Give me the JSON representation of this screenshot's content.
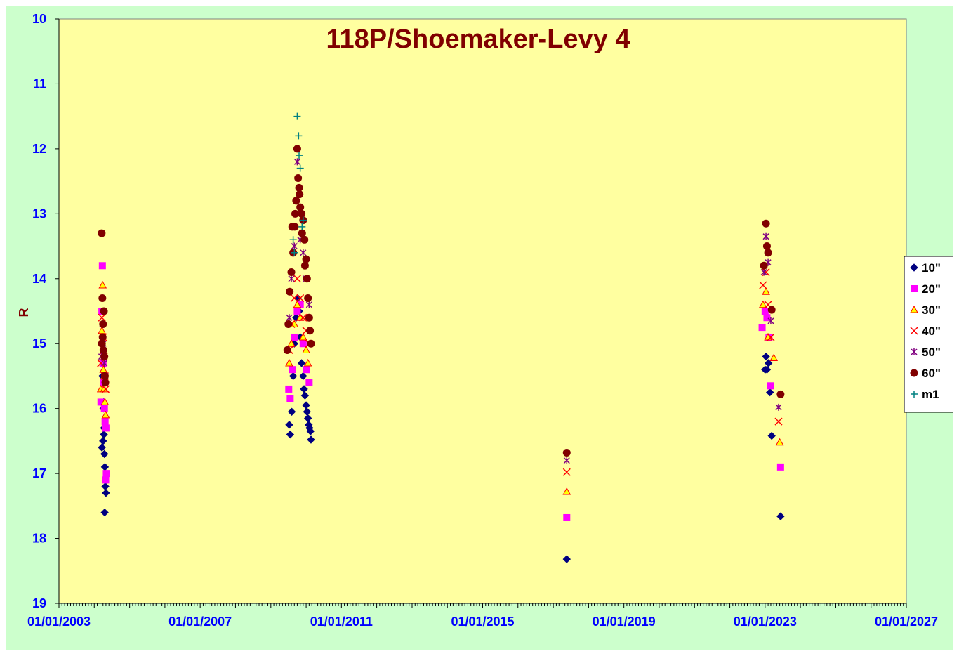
{
  "chart_data": {
    "type": "scatter",
    "title": "118P/Shoemaker-Levy 4",
    "xlabel": "",
    "ylabel": "R",
    "y_inverted": true,
    "ylim": [
      10,
      19
    ],
    "yticks": [
      10,
      11,
      12,
      13,
      14,
      15,
      16,
      17,
      18,
      19
    ],
    "xlim": [
      "2003-01-01",
      "2027-01-01"
    ],
    "xticks": [
      "01/01/2003",
      "01/01/2007",
      "01/01/2011",
      "01/01/2015",
      "01/01/2019",
      "01/01/2023",
      "01/01/2027"
    ],
    "grid": false,
    "legend_position": "right",
    "colors": {
      "plot_bg": "#ffffa0",
      "outer_bg": "#ccffcc",
      "title": "#800000",
      "ticks": "#0000ff"
    },
    "series": [
      {
        "name": "10\"",
        "marker": "diamond",
        "color": "#000080",
        "points": [
          [
            "2004-03-20",
            16.6
          ],
          [
            "2004-04-01",
            16.5
          ],
          [
            "2004-04-10",
            16.4
          ],
          [
            "2004-04-15",
            16.7
          ],
          [
            "2004-04-20",
            16.9
          ],
          [
            "2004-04-25",
            17.2
          ],
          [
            "2004-05-01",
            17.3
          ],
          [
            "2004-04-18",
            17.6
          ],
          [
            "2004-03-25",
            15.5
          ],
          [
            "2004-04-05",
            16.0
          ],
          [
            "2004-04-12",
            16.3
          ],
          [
            "2004-04-08",
            15.9
          ],
          [
            "2009-07-10",
            16.25
          ],
          [
            "2009-07-20",
            16.4
          ],
          [
            "2009-08-05",
            16.05
          ],
          [
            "2009-08-20",
            15.5
          ],
          [
            "2009-09-01",
            15.0
          ],
          [
            "2009-09-20",
            14.6
          ],
          [
            "2009-10-05",
            14.3
          ],
          [
            "2009-10-20",
            14.5
          ],
          [
            "2009-11-01",
            14.9
          ],
          [
            "2009-11-15",
            15.3
          ],
          [
            "2009-12-01",
            15.5
          ],
          [
            "2009-12-10",
            15.7
          ],
          [
            "2009-12-20",
            15.8
          ],
          [
            "2010-01-01",
            15.95
          ],
          [
            "2010-01-10",
            16.05
          ],
          [
            "2010-01-20",
            16.15
          ],
          [
            "2010-01-28",
            16.25
          ],
          [
            "2010-02-05",
            16.3
          ],
          [
            "2010-02-15",
            16.35
          ],
          [
            "2010-02-20",
            16.48
          ],
          [
            "2017-05-20",
            18.32
          ],
          [
            "2023-01-01",
            15.4
          ],
          [
            "2023-01-10",
            15.2
          ],
          [
            "2023-01-20",
            15.4
          ],
          [
            "2023-02-05",
            15.3
          ],
          [
            "2023-02-20",
            15.75
          ],
          [
            "2023-03-10",
            16.42
          ],
          [
            "2023-06-10",
            17.66
          ]
        ]
      },
      {
        "name": "20\"",
        "marker": "square",
        "color": "#ff00ff",
        "points": [
          [
            "2004-03-10",
            15.9
          ],
          [
            "2004-03-20",
            14.5
          ],
          [
            "2004-03-25",
            13.8
          ],
          [
            "2004-04-01",
            15.3
          ],
          [
            "2004-04-08",
            15.6
          ],
          [
            "2004-04-15",
            16.0
          ],
          [
            "2004-04-22",
            16.2
          ],
          [
            "2004-05-01",
            16.3
          ],
          [
            "2004-05-05",
            17.0
          ],
          [
            "2004-04-28",
            17.1
          ],
          [
            "2009-07-05",
            15.7
          ],
          [
            "2009-07-20",
            15.85
          ],
          [
            "2009-08-10",
            15.4
          ],
          [
            "2009-09-01",
            14.9
          ],
          [
            "2009-10-01",
            14.5
          ],
          [
            "2009-11-01",
            14.4
          ],
          [
            "2009-12-01",
            15.0
          ],
          [
            "2010-01-01",
            15.4
          ],
          [
            "2010-02-01",
            15.6
          ],
          [
            "2017-05-20",
            17.68
          ],
          [
            "2022-12-01",
            14.75
          ],
          [
            "2023-01-01",
            14.5
          ],
          [
            "2023-01-20",
            14.6
          ],
          [
            "2023-02-10",
            14.9
          ],
          [
            "2023-03-01",
            15.65
          ],
          [
            "2023-06-10",
            16.9
          ]
        ]
      },
      {
        "name": "30\"",
        "marker": "triangle",
        "color": "#ffff00",
        "stroke": "#ff0000",
        "points": [
          [
            "2004-03-10",
            15.7
          ],
          [
            "2004-03-20",
            14.8
          ],
          [
            "2004-03-28",
            14.1
          ],
          [
            "2004-04-05",
            15.4
          ],
          [
            "2004-04-12",
            15.7
          ],
          [
            "2004-04-20",
            15.9
          ],
          [
            "2004-04-28",
            16.1
          ],
          [
            "2004-04-15",
            15.5
          ],
          [
            "2009-07-10",
            15.3
          ],
          [
            "2009-08-01",
            15.0
          ],
          [
            "2009-09-01",
            14.7
          ],
          [
            "2009-10-01",
            14.4
          ],
          [
            "2009-11-01",
            14.6
          ],
          [
            "2009-12-01",
            14.9
          ],
          [
            "2010-01-01",
            15.1
          ],
          [
            "2010-01-20",
            15.3
          ],
          [
            "2017-05-20",
            17.28
          ],
          [
            "2022-12-10",
            14.4
          ],
          [
            "2023-01-10",
            14.2
          ],
          [
            "2023-02-01",
            14.9
          ],
          [
            "2023-04-01",
            15.22
          ],
          [
            "2023-06-01",
            16.52
          ]
        ]
      },
      {
        "name": "40\"",
        "marker": "x",
        "color": "#ff0000",
        "points": [
          [
            "2004-03-10",
            15.3
          ],
          [
            "2004-03-20",
            14.6
          ],
          [
            "2004-04-01",
            14.9
          ],
          [
            "2004-04-10",
            15.2
          ],
          [
            "2004-04-20",
            15.5
          ],
          [
            "2004-04-28",
            15.7
          ],
          [
            "2009-07-10",
            15.1
          ],
          [
            "2009-08-01",
            14.7
          ],
          [
            "2009-09-01",
            14.3
          ],
          [
            "2009-10-01",
            14.0
          ],
          [
            "2009-11-01",
            14.3
          ],
          [
            "2009-12-01",
            14.6
          ],
          [
            "2010-01-01",
            14.8
          ],
          [
            "2010-02-01",
            15.0
          ],
          [
            "2017-05-20",
            16.98
          ],
          [
            "2022-12-10",
            14.1
          ],
          [
            "2023-01-10",
            13.9
          ],
          [
            "2023-02-01",
            14.4
          ],
          [
            "2023-03-01",
            14.9
          ],
          [
            "2023-05-20",
            16.2
          ]
        ]
      },
      {
        "name": "50\"",
        "marker": "star",
        "color": "#800080",
        "points": [
          [
            "2004-03-15",
            15.2
          ],
          [
            "2004-03-25",
            14.7
          ],
          [
            "2004-04-05",
            15.0
          ],
          [
            "2004-04-15",
            15.3
          ],
          [
            "2004-04-25",
            15.5
          ],
          [
            "2009-07-10",
            14.6
          ],
          [
            "2009-08-01",
            14.0
          ],
          [
            "2009-09-01",
            13.5
          ],
          [
            "2009-10-01",
            12.2
          ],
          [
            "2009-11-01",
            13.4
          ],
          [
            "2009-12-01",
            13.6
          ],
          [
            "2010-01-01",
            14.0
          ],
          [
            "2010-02-01",
            14.4
          ],
          [
            "2017-05-20",
            16.8
          ],
          [
            "2022-12-20",
            13.9
          ],
          [
            "2023-01-10",
            13.35
          ],
          [
            "2023-02-01",
            13.75
          ],
          [
            "2023-03-01",
            14.65
          ],
          [
            "2023-05-20",
            15.98
          ]
        ]
      },
      {
        "name": "60\"",
        "marker": "circle",
        "color": "#800000",
        "points": [
          [
            "2004-03-18",
            13.3
          ],
          [
            "2004-03-25",
            14.3
          ],
          [
            "2004-04-01",
            14.7
          ],
          [
            "2004-03-20",
            15.0
          ],
          [
            "2004-04-05",
            15.1
          ],
          [
            "2004-04-10",
            14.5
          ],
          [
            "2004-04-15",
            15.2
          ],
          [
            "2004-04-20",
            15.5
          ],
          [
            "2004-04-25",
            15.6
          ],
          [
            "2004-03-28",
            14.9
          ],
          [
            "2009-06-20",
            15.1
          ],
          [
            "2009-07-01",
            14.7
          ],
          [
            "2009-07-15",
            14.2
          ],
          [
            "2009-08-01",
            13.9
          ],
          [
            "2009-08-20",
            13.6
          ],
          [
            "2009-09-05",
            13.2
          ],
          [
            "2009-09-20",
            12.8
          ],
          [
            "2009-10-01",
            12.0
          ],
          [
            "2009-10-10",
            12.45
          ],
          [
            "2009-10-20",
            12.6
          ],
          [
            "2009-11-01",
            12.9
          ],
          [
            "2009-11-15",
            13.0
          ],
          [
            "2009-12-01",
            13.1
          ],
          [
            "2009-12-15",
            13.4
          ],
          [
            "2010-01-01",
            13.7
          ],
          [
            "2010-01-10",
            14.0
          ],
          [
            "2010-01-20",
            14.3
          ],
          [
            "2010-02-01",
            14.6
          ],
          [
            "2010-02-10",
            14.8
          ],
          [
            "2010-02-20",
            15.0
          ],
          [
            "2009-08-10",
            13.2
          ],
          [
            "2009-09-10",
            13.0
          ],
          [
            "2009-10-25",
            12.7
          ],
          [
            "2009-11-20",
            13.3
          ],
          [
            "2009-12-20",
            13.8
          ],
          [
            "2017-05-20",
            16.68
          ],
          [
            "2022-12-20",
            13.8
          ],
          [
            "2023-01-10",
            13.15
          ],
          [
            "2023-01-20",
            13.5
          ],
          [
            "2023-02-01",
            13.6
          ],
          [
            "2023-03-10",
            14.48
          ],
          [
            "2023-06-10",
            15.78
          ]
        ]
      },
      {
        "name": "m1",
        "marker": "plus",
        "color": "#008080",
        "points": [
          [
            "2009-09-01",
            13.6
          ],
          [
            "2009-10-01",
            11.5
          ],
          [
            "2009-10-15",
            11.8
          ],
          [
            "2009-10-20",
            12.1
          ],
          [
            "2009-11-01",
            12.3
          ],
          [
            "2009-12-01",
            13.1
          ],
          [
            "2009-08-20",
            13.4
          ],
          [
            "2009-11-20",
            13.2
          ]
        ]
      }
    ]
  }
}
